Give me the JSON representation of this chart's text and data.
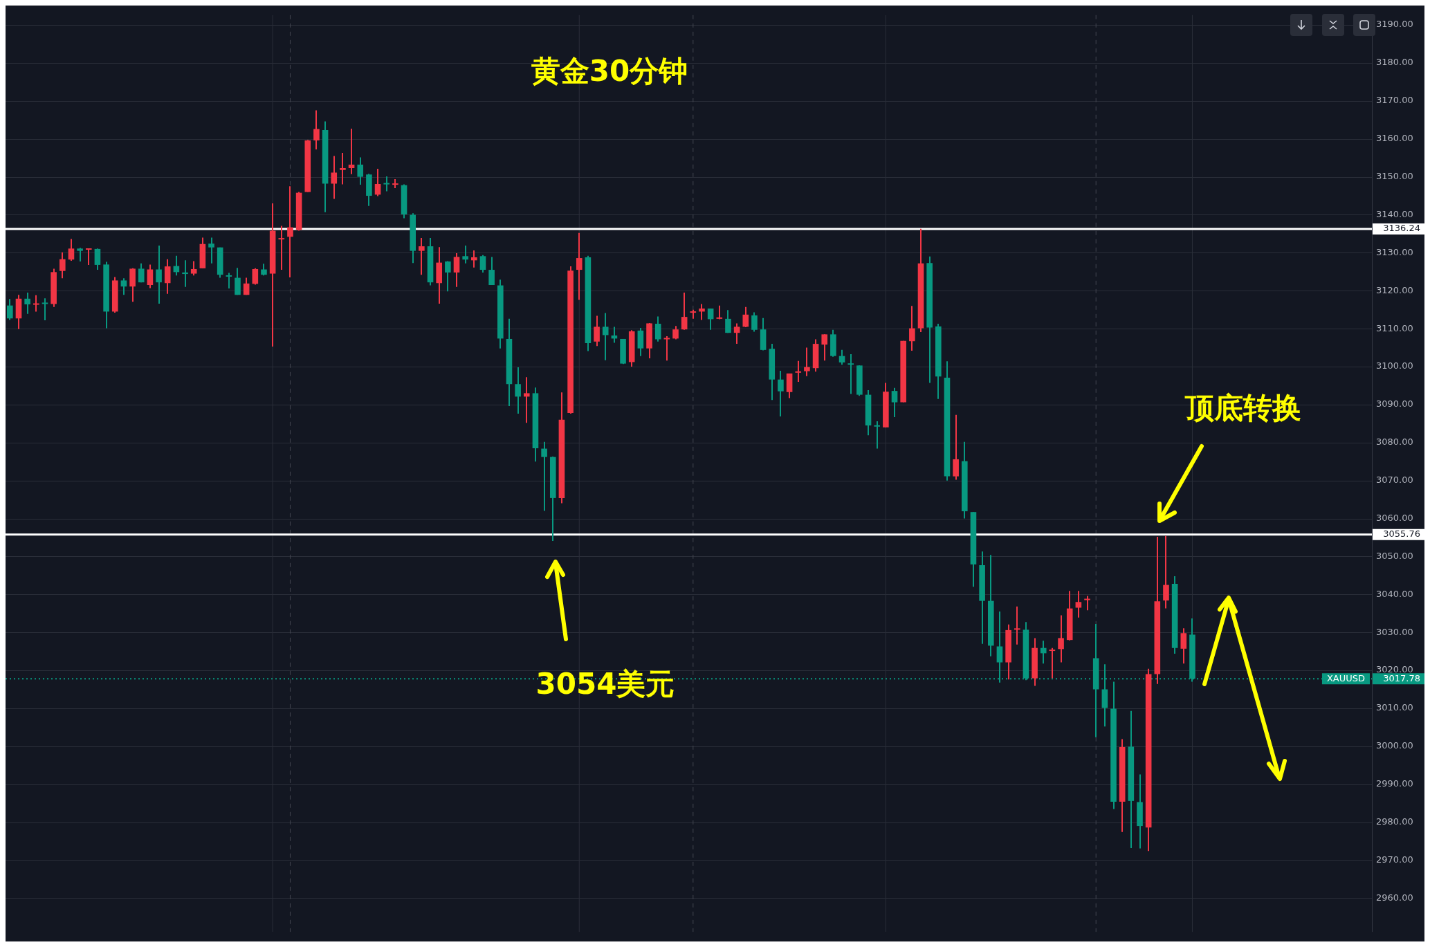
{
  "chart_data": {
    "type": "candlestick",
    "title": "黄金30分钟",
    "categories": [
      null,
      null,
      null,
      null,
      null,
      null,
      null,
      null,
      null,
      null,
      null,
      null,
      null,
      null,
      null,
      null,
      null,
      null,
      null,
      null,
      null,
      null,
      null,
      null,
      null,
      null,
      null,
      null,
      null,
      null,
      null,
      null,
      null,
      null,
      null,
      null,
      null,
      null,
      null,
      null,
      null,
      null,
      null,
      null,
      null,
      null,
      null,
      null,
      null,
      null,
      null,
      null,
      null,
      null,
      null,
      null,
      null,
      null,
      null,
      null,
      null,
      null,
      null,
      null,
      null,
      null,
      null,
      null,
      null,
      null,
      null,
      null,
      null,
      null,
      null,
      null,
      null,
      null,
      null,
      null,
      null,
      null,
      null,
      null,
      null,
      null,
      null,
      null,
      null,
      null,
      null,
      null,
      null,
      null,
      null,
      null,
      null,
      null,
      null,
      null,
      null,
      null,
      null,
      null,
      null,
      null,
      null,
      null,
      null,
      null,
      null,
      null,
      null,
      null,
      null,
      null,
      null,
      null,
      null,
      null,
      null,
      null,
      null,
      null,
      null,
      null,
      null,
      null,
      null,
      null,
      null,
      null,
      null,
      null,
      null,
      null,
      null,
      null,
      null,
      null,
      null,
      null,
      null,
      null,
      null,
      null,
      null,
      null,
      null,
      null,
      null,
      null,
      null,
      null,
      null,
      null
    ],
    "ohlc": [
      [
        3116.1,
        3117.8,
        3112.3,
        3112.7
      ],
      [
        3112.7,
        3118.9,
        3109.9,
        3117.9
      ],
      [
        3117.9,
        3119.5,
        3113.9,
        3116.4
      ],
      [
        3116.3,
        3118.8,
        3114.5,
        3116.4
      ],
      [
        3116.6,
        3118.0,
        3112.2,
        3116.5
      ],
      [
        3116.5,
        3125.8,
        3115.7,
        3124.9
      ],
      [
        3125.2,
        3130.1,
        3123.3,
        3128.3
      ],
      [
        3128.2,
        3133.6,
        3127.9,
        3131.1
      ],
      [
        3131.1,
        3131.3,
        3127.7,
        3130.5
      ],
      [
        3130.8,
        3131.1,
        3126.8,
        3130.9
      ],
      [
        3131.0,
        3131.1,
        3125.5,
        3126.8
      ],
      [
        3126.9,
        3127.6,
        3110.1,
        3114.5
      ],
      [
        3114.5,
        3123.6,
        3114.2,
        3122.7
      ],
      [
        3122.7,
        3123.3,
        3118.9,
        3121.1
      ],
      [
        3121.1,
        3125.9,
        3117.1,
        3125.8
      ],
      [
        3125.8,
        3127.2,
        3122.2,
        3122.2
      ],
      [
        3121.5,
        3126.9,
        3120.7,
        3125.6
      ],
      [
        3125.6,
        3131.9,
        3116.6,
        3122.2
      ],
      [
        3122.0,
        3128.3,
        3119.2,
        3126.4
      ],
      [
        3126.5,
        3129.2,
        3124.0,
        3124.9
      ],
      [
        3124.8,
        3128.0,
        3121.0,
        3124.4
      ],
      [
        3124.5,
        3127.8,
        3124.0,
        3125.7
      ],
      [
        3125.9,
        3134.0,
        3125.9,
        3132.3
      ],
      [
        3132.4,
        3134.0,
        3127.2,
        3131.4
      ],
      [
        3131.4,
        3131.4,
        3123.4,
        3124.2
      ],
      [
        3123.9,
        3124.7,
        3120.6,
        3123.7
      ],
      [
        3123.4,
        3126.0,
        3118.9,
        3118.9
      ],
      [
        3118.9,
        3123.4,
        3118.9,
        3121.9
      ],
      [
        3121.8,
        3125.9,
        3121.6,
        3125.7
      ],
      [
        3125.6,
        3127.1,
        3124.0,
        3124.2
      ],
      [
        3124.5,
        3143.0,
        3105.3,
        3135.8
      ],
      [
        3133.5,
        3137.1,
        3125.5,
        3133.6
      ],
      [
        3134.2,
        3147.5,
        3123.5,
        3136.7
      ],
      [
        3136.0,
        3146.0,
        3135.8,
        3145.8
      ],
      [
        3146.0,
        3159.7,
        3146.0,
        3159.6
      ],
      [
        3159.6,
        3167.5,
        3157.2,
        3162.6
      ],
      [
        3162.3,
        3164.6,
        3140.7,
        3148.2
      ],
      [
        3148.2,
        3155.5,
        3144.2,
        3151.1
      ],
      [
        3151.8,
        3156.3,
        3148.0,
        3152.3
      ],
      [
        3152.3,
        3162.7,
        3150.7,
        3153.2
      ],
      [
        3153.2,
        3155.1,
        3147.9,
        3150.0
      ],
      [
        3150.6,
        3150.8,
        3142.3,
        3145.0
      ],
      [
        3145.3,
        3152.1,
        3144.9,
        3148.1
      ],
      [
        3148.1,
        3150.1,
        3146.2,
        3148.0
      ],
      [
        3147.9,
        3149.4,
        3147.0,
        3148.0
      ],
      [
        3147.8,
        3148.0,
        3139.1,
        3140.1
      ],
      [
        3140.0,
        3140.4,
        3127.3,
        3130.5
      ],
      [
        3130.5,
        3133.9,
        3124.2,
        3131.7
      ],
      [
        3131.7,
        3133.9,
        3121.4,
        3122.2
      ],
      [
        3122.0,
        3131.5,
        3116.6,
        3127.4
      ],
      [
        3127.7,
        3127.8,
        3119.8,
        3124.8
      ],
      [
        3124.8,
        3129.9,
        3121.0,
        3128.9
      ],
      [
        3129.1,
        3131.9,
        3127.2,
        3128.2
      ],
      [
        3128.0,
        3130.6,
        3126.1,
        3128.8
      ],
      [
        3129.1,
        3129.4,
        3124.8,
        3125.5
      ],
      [
        3125.5,
        3128.9,
        3121.5,
        3121.5
      ],
      [
        3121.4,
        3122.9,
        3104.8,
        3107.4
      ],
      [
        3107.3,
        3112.6,
        3089.6,
        3095.4
      ],
      [
        3095.4,
        3099.8,
        3087.6,
        3092.1
      ],
      [
        3092.1,
        3097.2,
        3085.2,
        3093.0
      ],
      [
        3093.0,
        3094.5,
        3075.0,
        3078.5
      ],
      [
        3078.4,
        3080.2,
        3062.0,
        3076.2
      ],
      [
        3076.2,
        3076.3,
        3054.1,
        3065.4
      ],
      [
        3065.4,
        3093.2,
        3064.0,
        3086.0
      ],
      [
        3087.8,
        3126.4,
        3087.6,
        3125.3
      ],
      [
        3125.5,
        3135.2,
        3117.6,
        3128.6
      ],
      [
        3128.8,
        3129.2,
        3104.1,
        3106.2
      ],
      [
        3106.6,
        3113.4,
        3105.4,
        3110.5
      ],
      [
        3110.5,
        3114.1,
        3101.7,
        3108.3
      ],
      [
        3108.2,
        3110.5,
        3106.3,
        3107.4
      ],
      [
        3107.3,
        3107.3,
        3100.7,
        3100.8
      ],
      [
        3101.2,
        3109.6,
        3100.0,
        3109.3
      ],
      [
        3109.5,
        3110.2,
        3102.8,
        3104.8
      ],
      [
        3104.8,
        3111.5,
        3102.2,
        3111.4
      ],
      [
        3111.3,
        3113.2,
        3106.6,
        3107.2
      ],
      [
        3107.2,
        3108.0,
        3101.6,
        3107.3
      ],
      [
        3107.4,
        3110.7,
        3107.2,
        3109.8
      ],
      [
        3109.8,
        3119.5,
        3109.7,
        3113.1
      ],
      [
        3114.2,
        3115.0,
        3112.6,
        3114.3
      ],
      [
        3114.5,
        3116.5,
        3112.3,
        3115.3
      ],
      [
        3115.3,
        3115.3,
        3109.7,
        3112.5
      ],
      [
        3112.6,
        3116.1,
        3112.5,
        3112.7
      ],
      [
        3112.6,
        3114.9,
        3108.9,
        3108.9
      ],
      [
        3108.9,
        3111.4,
        3106.0,
        3110.5
      ],
      [
        3110.5,
        3115.7,
        3110.4,
        3113.7
      ],
      [
        3113.5,
        3114.3,
        3109.2,
        3109.7
      ],
      [
        3109.8,
        3112.8,
        3104.3,
        3104.4
      ],
      [
        3104.7,
        3106.0,
        3091.2,
        3096.6
      ],
      [
        3096.6,
        3098.9,
        3086.9,
        3093.5
      ],
      [
        3093.3,
        3098.2,
        3091.7,
        3098.2
      ],
      [
        3098.4,
        3101.5,
        3096.0,
        3098.5
      ],
      [
        3098.8,
        3105.0,
        3097.5,
        3099.9
      ],
      [
        3099.6,
        3107.2,
        3098.7,
        3106.0
      ],
      [
        3105.8,
        3108.5,
        3101.6,
        3108.5
      ],
      [
        3108.5,
        3109.7,
        3102.6,
        3102.8
      ],
      [
        3102.8,
        3104.4,
        3100.5,
        3101.1
      ],
      [
        3100.6,
        3103.3,
        3092.8,
        3100.5
      ],
      [
        3100.3,
        3100.3,
        3092.3,
        3092.6
      ],
      [
        3092.6,
        3093.8,
        3081.9,
        3084.5
      ],
      [
        3084.3,
        3085.6,
        3078.4,
        3084.2
      ],
      [
        3084.0,
        3095.7,
        3084.0,
        3093.4
      ],
      [
        3093.6,
        3094.4,
        3086.7,
        3090.6
      ],
      [
        3090.6,
        3106.8,
        3090.6,
        3106.8
      ],
      [
        3106.7,
        3116.0,
        3104.2,
        3110.1
      ],
      [
        3110.1,
        3136.3,
        3109.1,
        3127.2
      ],
      [
        3127.3,
        3129.0,
        3095.7,
        3110.3
      ],
      [
        3110.6,
        3111.3,
        3091.5,
        3097.4
      ],
      [
        3097.1,
        3101.4,
        3070.0,
        3071.1
      ],
      [
        3071.1,
        3087.3,
        3070.2,
        3075.6
      ],
      [
        3075.1,
        3080.2,
        3060.0,
        3061.9
      ],
      [
        3061.7,
        3061.7,
        3042.0,
        3047.9
      ],
      [
        3047.7,
        3051.3,
        3027.0,
        3038.3
      ],
      [
        3038.3,
        3050.4,
        3023.7,
        3026.5
      ],
      [
        3026.3,
        3035.5,
        3016.8,
        3022.1
      ],
      [
        3022.1,
        3032.1,
        3017.6,
        3030.6
      ],
      [
        3030.7,
        3036.8,
        3026.8,
        3030.8
      ],
      [
        3030.7,
        3032.7,
        3017.4,
        3017.9
      ],
      [
        3017.9,
        3028.5,
        3015.9,
        3025.9
      ],
      [
        3025.9,
        3027.8,
        3021.8,
        3024.5
      ],
      [
        3025.1,
        3025.9,
        3017.9,
        3025.2
      ],
      [
        3025.6,
        3034.5,
        3022.1,
        3028.5
      ],
      [
        3028.0,
        3040.9,
        3027.9,
        3036.3
      ],
      [
        3036.5,
        3040.9,
        3033.9,
        3038.0
      ],
      [
        3038.5,
        3039.6,
        3035.8,
        3038.6
      ],
      [
        3023.2,
        3032.2,
        3002.4,
        3015.0
      ],
      [
        3015.0,
        3021.6,
        3005.2,
        3010.1
      ],
      [
        3009.9,
        3017.0,
        2983.5,
        2985.4
      ],
      [
        2985.4,
        3001.9,
        2977.4,
        2999.8
      ],
      [
        2999.9,
        3009.3,
        2973.2,
        2985.6
      ],
      [
        2985.3,
        2992.6,
        2973.1,
        2979.0
      ],
      [
        2978.6,
        3020.4,
        2972.4,
        3019.0
      ],
      [
        3019.0,
        3055.2,
        3016.4,
        3038.2
      ],
      [
        3038.4,
        3055.4,
        3036.3,
        3042.5
      ],
      [
        3042.8,
        3044.8,
        3024.4,
        3025.9
      ],
      [
        3025.7,
        3031.1,
        3021.8,
        3029.8
      ],
      [
        3029.4,
        3033.7,
        3017.0,
        3017.8
      ],
      null,
      null,
      null,
      null,
      null,
      null,
      null,
      null,
      null,
      null,
      null,
      null,
      null,
      null,
      null,
      null,
      null,
      null,
      null,
      null
    ],
    "colors": [
      "#089981",
      "#f23645",
      "#089981",
      "#f23645",
      "#089981",
      "#f23645",
      "#f23645",
      "#f23645",
      "#089981",
      "#f23645",
      "#089981",
      "#089981",
      "#f23645",
      "#089981",
      "#f23645",
      "#089981",
      "#f23645",
      "#089981",
      "#f23645",
      "#089981",
      "#089981",
      "#f23645",
      "#f23645",
      "#089981",
      "#089981",
      "#089981",
      "#089981",
      "#f23645",
      "#f23645",
      "#089981",
      "#f23645",
      "#f23645",
      "#f23645",
      "#f23645",
      "#f23645",
      "#f23645",
      "#089981",
      "#f23645",
      "#f23645",
      "#f23645",
      "#089981",
      "#089981",
      "#f23645",
      "#089981",
      "#f23645",
      "#089981",
      "#089981",
      "#f23645",
      "#089981",
      "#f23645",
      "#089981",
      "#f23645",
      "#089981",
      "#f23645",
      "#089981",
      "#089981",
      "#089981",
      "#089981",
      "#089981",
      "#f23645",
      "#089981",
      "#089981",
      "#089981",
      "#f23645",
      "#f23645",
      "#f23645",
      "#089981",
      "#f23645",
      "#089981",
      "#089981",
      "#089981",
      "#f23645",
      "#089981",
      "#f23645",
      "#089981",
      "#f23645",
      "#f23645",
      "#f23645",
      "#f23645",
      "#f23645",
      "#089981",
      "#f23645",
      "#089981",
      "#f23645",
      "#f23645",
      "#089981",
      "#089981",
      "#089981",
      "#089981",
      "#f23645",
      "#f23645",
      "#f23645",
      "#f23645",
      "#f23645",
      "#089981",
      "#089981",
      "#089981",
      "#089981",
      "#089981",
      "#089981",
      "#f23645",
      "#089981",
      "#f23645",
      "#f23645",
      "#f23645",
      "#089981",
      "#089981",
      "#089981",
      "#f23645",
      "#089981",
      "#089981",
      "#089981",
      "#089981",
      "#089981",
      "#f23645",
      "#f23645",
      "#089981",
      "#f23645",
      "#089981",
      "#f23645",
      "#f23645",
      "#f23645",
      "#f23645",
      "#f23645",
      "#089981",
      "#089981",
      "#089981",
      "#f23645",
      "#089981",
      "#089981",
      "#f23645",
      "#f23645",
      "#f23645",
      "#089981",
      "#f23645",
      "#089981",
      null,
      null,
      null,
      null,
      null,
      null,
      null,
      null,
      null,
      null,
      null,
      null,
      null,
      null,
      null,
      null,
      null,
      null,
      null,
      null
    ],
    "ylim": [
      2951.1,
      3192.6
    ],
    "yticks": [
      {
        "value": 2960,
        "label": "2960.00"
      },
      {
        "value": 2970,
        "label": "2970.00"
      },
      {
        "value": 2980,
        "label": "2980.00"
      },
      {
        "value": 2990,
        "label": "2990.00"
      },
      {
        "value": 3000,
        "label": "3000.00"
      },
      {
        "value": 3010,
        "label": "3010.00"
      },
      {
        "value": 3020,
        "label": "3020.00"
      },
      {
        "value": 3030,
        "label": "3030.00"
      },
      {
        "value": 3040,
        "label": "3040.00"
      },
      {
        "value": 3050,
        "label": "3050.00"
      },
      {
        "value": 3060,
        "label": "3060.00"
      },
      {
        "value": 3070,
        "label": "3070.00"
      },
      {
        "value": 3080,
        "label": "3080.00"
      },
      {
        "value": 3090,
        "label": "3090.00"
      },
      {
        "value": 3100,
        "label": "3100.00"
      },
      {
        "value": 3110,
        "label": "3110.00"
      },
      {
        "value": 3120,
        "label": "3120.00"
      },
      {
        "value": 3130,
        "label": "3130.00"
      },
      {
        "value": 3140,
        "label": "3140.00"
      },
      {
        "value": 3150,
        "label": "3150.00"
      },
      {
        "value": 3160,
        "label": "3160.00"
      },
      {
        "value": 3170,
        "label": "3170.00"
      },
      {
        "value": 3180,
        "label": "3180.00"
      },
      {
        "value": 3190,
        "label": "3190.00"
      }
    ],
    "ref_lines": [
      {
        "axis": "y",
        "value": 3136.24,
        "label": "3136.24",
        "color": "#ffffff"
      },
      {
        "axis": "y",
        "value": 3055.76,
        "label": "3055.76",
        "color": "#ffffff"
      },
      {
        "axis": "y",
        "value": 3017.78,
        "label": "3017.78",
        "color": "#089981",
        "line_style": "dotted"
      }
    ],
    "annotations": [
      "3054美元",
      "顶底转换",
      {
        "text": "XAUUSD",
        "y": 3017.78
      }
    ],
    "grid": true,
    "legend": false,
    "tick_labels": "y"
  }
}
